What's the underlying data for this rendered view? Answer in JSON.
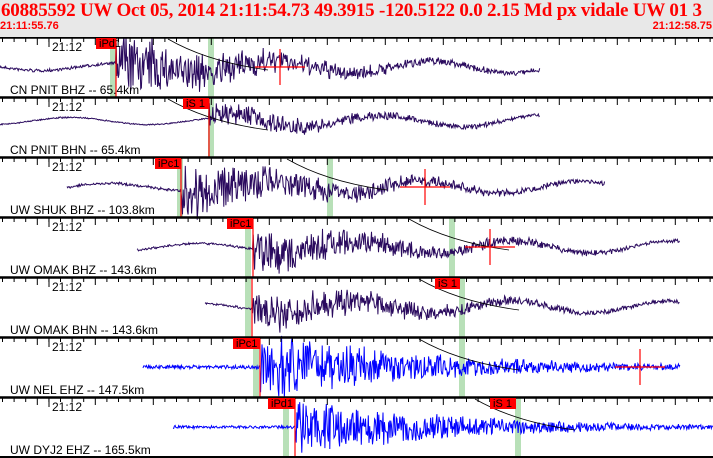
{
  "header": {
    "title": "60885592 UW Oct 05, 2014 21:11:54.73    49.3915 -120.5122  0.0 2.15 Md px vidale UW 01    3",
    "start_time": "21:11:55.76",
    "end_time": "21:12:58.75"
  },
  "colors": {
    "header_text": "#ff0000",
    "pick_box": "#ff0000",
    "p_window": "#b8e0b8",
    "trace_bh": "#2a0a5e",
    "trace_eh": "#0000ff"
  },
  "panels": [
    {
      "label": "CN PNIT BHZ -- 65.4km",
      "minute": "21:12",
      "picks": [
        "iPd1"
      ]
    },
    {
      "label": "CN PNIT BHN -- 65.4km",
      "minute": "21:12",
      "picks": [
        "iS 1"
      ]
    },
    {
      "label": "UW SHUK BHZ -- 103.8km",
      "minute": "21:12",
      "picks": [
        "iPc1"
      ]
    },
    {
      "label": "UW OMAK BHZ -- 143.6km",
      "minute": "21:12",
      "picks": [
        "iPc1"
      ]
    },
    {
      "label": "UW OMAK BHN -- 143.6km",
      "minute": "21:12",
      "picks": [
        "iS 1"
      ]
    },
    {
      "label": "UW NEL EHZ -- 147.5km",
      "minute": "21:12",
      "picks": [
        "iPc1"
      ]
    },
    {
      "label": "UW DYJ2 EHZ -- 165.5km",
      "minute": "21:12",
      "picks": [
        "iPd1",
        "iS 1"
      ]
    }
  ]
}
